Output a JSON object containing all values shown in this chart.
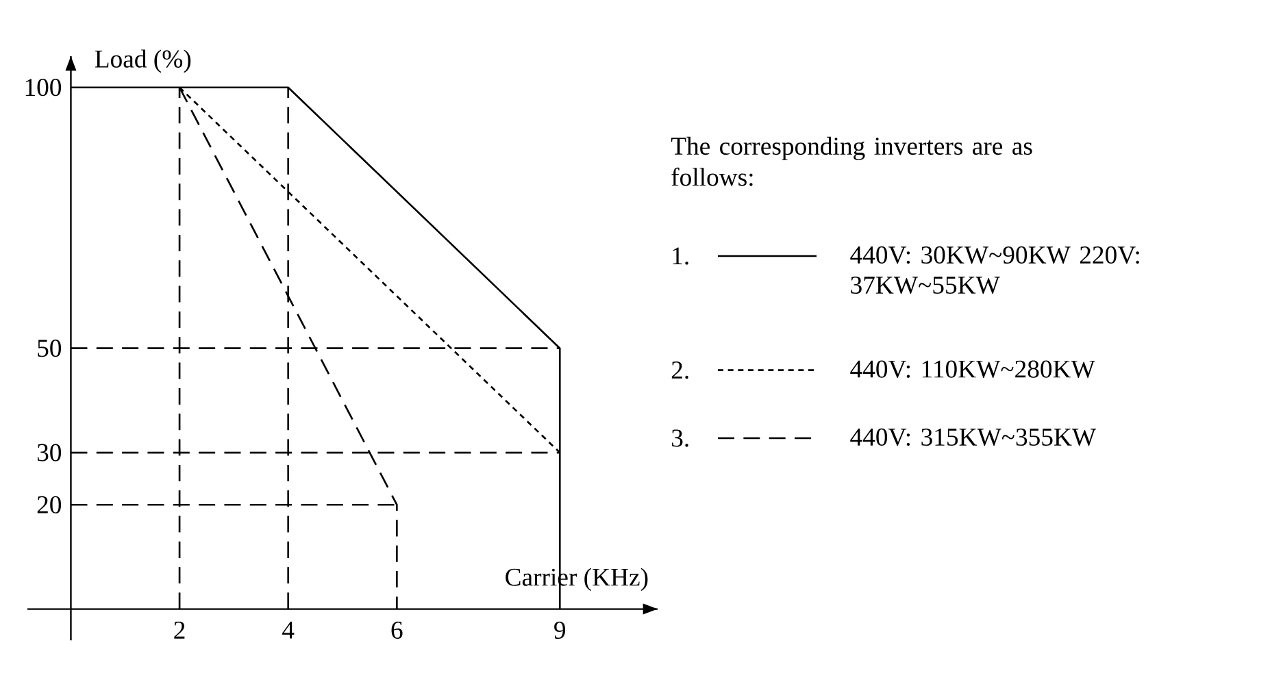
{
  "chart_data": {
    "type": "line",
    "xlabel": "Carrier (KHz)",
    "ylabel": "Load (%)",
    "legend_title": "The corresponding inverters are as follows:",
    "xlim": [
      -0.8,
      10.8
    ],
    "ylim": [
      -6,
      106
    ],
    "xticks": [
      2,
      4,
      6,
      9
    ],
    "yticks": [
      20,
      30,
      50,
      100
    ],
    "legend": "right",
    "marker": "none",
    "annotations": [
      "1.",
      "2.",
      "3."
    ],
    "series": [
      {
        "name": "440V: 30KW~90KW 220V: 37KW~55KW",
        "color": "#000000",
        "line_style": "solid",
        "x": [
          0,
          4,
          9,
          9
        ],
        "values": [
          100,
          100,
          50,
          0
        ]
      },
      {
        "name": "440V: 110KW~280KW",
        "color": "#000000",
        "line_style": "dotted",
        "x": [
          2,
          9
        ],
        "values": [
          100,
          30
        ]
      },
      {
        "name": "440V: 315KW~355KW",
        "color": "#000000",
        "line_style": "dashed",
        "x": [
          2,
          6,
          6
        ],
        "values": [
          100,
          20,
          0
        ]
      },
      {
        "color": "#000000",
        "line_style": "dashed",
        "x": [
          0,
          9
        ],
        "values": [
          50,
          50
        ]
      },
      {
        "color": "#000000",
        "line_style": "dashed",
        "x": [
          0,
          9
        ],
        "values": [
          30,
          30
        ]
      },
      {
        "color": "#000000",
        "line_style": "dashed",
        "x": [
          0,
          6
        ],
        "values": [
          20,
          20
        ]
      },
      {
        "color": "#000000",
        "line_style": "dashed",
        "x": [
          2,
          2
        ],
        "values": [
          0,
          100
        ]
      },
      {
        "color": "#000000",
        "line_style": "dashed",
        "x": [
          4,
          4
        ],
        "values": [
          0,
          100
        ]
      }
    ]
  }
}
